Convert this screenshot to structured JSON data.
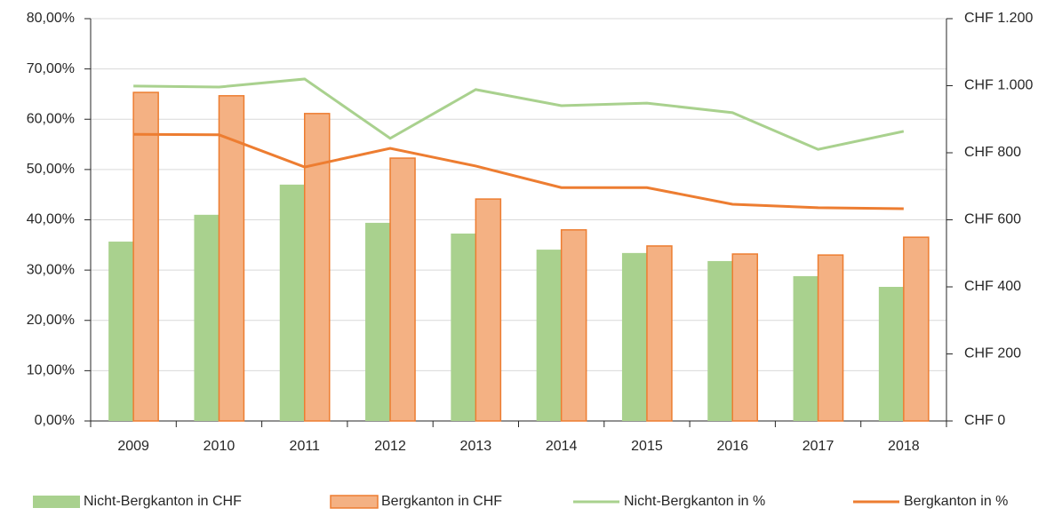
{
  "chart_data": {
    "type": "combo",
    "categories": [
      "2009",
      "2010",
      "2011",
      "2012",
      "2013",
      "2014",
      "2015",
      "2016",
      "2017",
      "2018"
    ],
    "series": [
      {
        "name": "Nicht-Bergkanton in CHF",
        "type": "bar",
        "axis": "y2",
        "color": "#a9d18e",
        "values": [
          535,
          615,
          705,
          591,
          559,
          511,
          501,
          477,
          432,
          400
        ]
      },
      {
        "name": "Bergkanton in CHF",
        "type": "bar",
        "axis": "y2",
        "color": "#f4b183",
        "stroke": "#ed7d31",
        "values": [
          980,
          970,
          917,
          784,
          662,
          570,
          522,
          498,
          495,
          548
        ]
      },
      {
        "name": "Nicht-Bergkanton in %",
        "type": "line",
        "color": "#a9d18e",
        "values": [
          66.6,
          66.4,
          68.0,
          56.2,
          65.9,
          62.7,
          63.2,
          61.3,
          54.0,
          57.6
        ]
      },
      {
        "name": "Bergkanton in %",
        "type": "line",
        "color": "#ed7d31",
        "values": [
          57.0,
          56.9,
          50.5,
          54.2,
          50.7,
          46.4,
          46.4,
          43.1,
          42.4,
          42.2
        ]
      }
    ],
    "ylim": [
      0,
      80
    ],
    "yticks": [
      {
        "value": 0,
        "label": "0,00%"
      },
      {
        "value": 10,
        "label": "10,00%"
      },
      {
        "value": 20,
        "label": "20,00%"
      },
      {
        "value": 30,
        "label": "30,00%"
      },
      {
        "value": 40,
        "label": "40,00%"
      },
      {
        "value": 50,
        "label": "50,00%"
      },
      {
        "value": 60,
        "label": "60,00%"
      },
      {
        "value": 70,
        "label": "70,00%"
      },
      {
        "value": 80,
        "label": "80,00%"
      }
    ],
    "y2lim": [
      0,
      1200
    ],
    "y2ticks": [
      {
        "value": 0,
        "label": "CHF 0"
      },
      {
        "value": 200,
        "label": "CHF 200"
      },
      {
        "value": 400,
        "label": "CHF 400"
      },
      {
        "value": 600,
        "label": "CHF 600"
      },
      {
        "value": 800,
        "label": "CHF 800"
      },
      {
        "value": 1000,
        "label": "CHF 1.000"
      },
      {
        "value": 1200,
        "label": "CHF 1.200"
      }
    ],
    "grid": true,
    "legend": "bottom"
  }
}
